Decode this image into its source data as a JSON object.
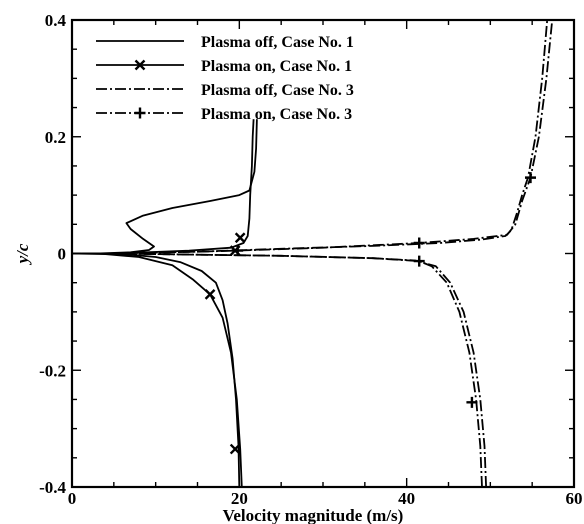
{
  "chart_data": {
    "type": "line",
    "xlabel": "Velocity magnitude (m/s)",
    "ylabel": "y/c",
    "xlim": [
      0,
      60
    ],
    "ylim": [
      -0.4,
      0.4
    ],
    "xticks": [
      "0",
      "20",
      "40",
      "60"
    ],
    "yticks": [
      "-0.4",
      "-0.2",
      "0",
      "0.2",
      "0.4"
    ],
    "legend_position": "top-left",
    "grid": false,
    "series": [
      {
        "name": "Plasma off, Case No. 1",
        "style": "solid",
        "marker": "none",
        "points": [
          [
            20.0,
            -0.4
          ],
          [
            19.9,
            -0.33
          ],
          [
            19.6,
            -0.25
          ],
          [
            19.2,
            -0.18
          ],
          [
            18.6,
            -0.12
          ],
          [
            18.0,
            -0.08
          ],
          [
            17.2,
            -0.05
          ],
          [
            15.5,
            -0.03
          ],
          [
            13.0,
            -0.015
          ],
          [
            10.0,
            -0.006
          ],
          [
            7.0,
            -0.002
          ],
          [
            3.0,
            0.0
          ],
          [
            0.0,
            0.0
          ],
          [
            3.0,
            0.0
          ],
          [
            7.0,
            0.002
          ],
          [
            9.2,
            0.006
          ],
          [
            9.8,
            0.012
          ],
          [
            8.5,
            0.025
          ],
          [
            7.0,
            0.042
          ],
          [
            6.5,
            0.052
          ],
          [
            8.5,
            0.065
          ],
          [
            12.0,
            0.078
          ],
          [
            16.5,
            0.09
          ],
          [
            20.0,
            0.1
          ],
          [
            21.2,
            0.108
          ],
          [
            21.8,
            0.14
          ],
          [
            22.0,
            0.18
          ],
          [
            22.1,
            0.23
          ]
        ]
      },
      {
        "name": "Plasma on, Case No. 1",
        "style": "solid",
        "marker": "x",
        "markers_at": [
          [
            16.5,
            -0.07
          ],
          [
            19.5,
            -0.335
          ],
          [
            20.1,
            0.027
          ],
          [
            19.5,
            0.005
          ]
        ],
        "points": [
          [
            20.3,
            -0.4
          ],
          [
            20.1,
            -0.335
          ],
          [
            19.7,
            -0.25
          ],
          [
            19.0,
            -0.17
          ],
          [
            18.0,
            -0.11
          ],
          [
            16.5,
            -0.07
          ],
          [
            14.5,
            -0.045
          ],
          [
            12.0,
            -0.02
          ],
          [
            8.0,
            -0.006
          ],
          [
            4.0,
            -0.001
          ],
          [
            0.0,
            0.0
          ],
          [
            4.0,
            0.0
          ],
          [
            9.0,
            0.002
          ],
          [
            14.0,
            0.005
          ],
          [
            19.0,
            0.01
          ],
          [
            20.5,
            0.018
          ],
          [
            21.0,
            0.03
          ],
          [
            21.2,
            0.06
          ],
          [
            21.3,
            0.1
          ],
          [
            21.5,
            0.15
          ],
          [
            21.6,
            0.2
          ],
          [
            21.7,
            0.23
          ]
        ]
      },
      {
        "name": "Plasma off, Case No. 3",
        "style": "dashdot",
        "marker": "none",
        "points": [
          [
            49.5,
            -0.4
          ],
          [
            49.3,
            -0.33
          ],
          [
            48.8,
            -0.25
          ],
          [
            48.0,
            -0.17
          ],
          [
            46.8,
            -0.1
          ],
          [
            45.2,
            -0.05
          ],
          [
            43.5,
            -0.022
          ],
          [
            41.0,
            -0.012
          ],
          [
            36.0,
            -0.008
          ],
          [
            25.0,
            -0.004
          ],
          [
            15.0,
            -0.002
          ],
          [
            5.0,
            0.0
          ],
          [
            0.0,
            0.0
          ],
          [
            5.0,
            0.0
          ],
          [
            15.0,
            0.003
          ],
          [
            25.0,
            0.008
          ],
          [
            36.0,
            0.013
          ],
          [
            44.0,
            0.018
          ],
          [
            49.0,
            0.024
          ],
          [
            51.8,
            0.03
          ],
          [
            52.5,
            0.04
          ],
          [
            53.2,
            0.07
          ],
          [
            53.8,
            0.1
          ],
          [
            54.5,
            0.13
          ],
          [
            55.4,
            0.2
          ],
          [
            56.2,
            0.3
          ],
          [
            56.8,
            0.4
          ]
        ]
      },
      {
        "name": "Plasma on, Case No. 3",
        "style": "dashdot",
        "marker": "plus",
        "markers_at": [
          [
            54.8,
            0.13
          ],
          [
            41.5,
            0.018
          ],
          [
            19.8,
            0.005
          ],
          [
            41.5,
            -0.013
          ],
          [
            47.8,
            -0.255
          ]
        ],
        "points": [
          [
            49.0,
            -0.4
          ],
          [
            48.8,
            -0.33
          ],
          [
            48.3,
            -0.25
          ],
          [
            47.5,
            -0.17
          ],
          [
            46.3,
            -0.1
          ],
          [
            44.8,
            -0.05
          ],
          [
            43.0,
            -0.022
          ],
          [
            41.5,
            -0.013
          ],
          [
            36.0,
            -0.008
          ],
          [
            25.0,
            -0.004
          ],
          [
            15.0,
            -0.002
          ],
          [
            5.0,
            0.0
          ],
          [
            0.0,
            0.0
          ],
          [
            5.0,
            0.0
          ],
          [
            15.0,
            0.003
          ],
          [
            19.8,
            0.005
          ],
          [
            30.0,
            0.01
          ],
          [
            41.5,
            0.018
          ],
          [
            48.0,
            0.025
          ],
          [
            52.0,
            0.032
          ],
          [
            53.0,
            0.05
          ],
          [
            53.8,
            0.09
          ],
          [
            54.8,
            0.13
          ],
          [
            55.8,
            0.2
          ],
          [
            56.7,
            0.3
          ],
          [
            57.4,
            0.4
          ]
        ]
      }
    ]
  }
}
